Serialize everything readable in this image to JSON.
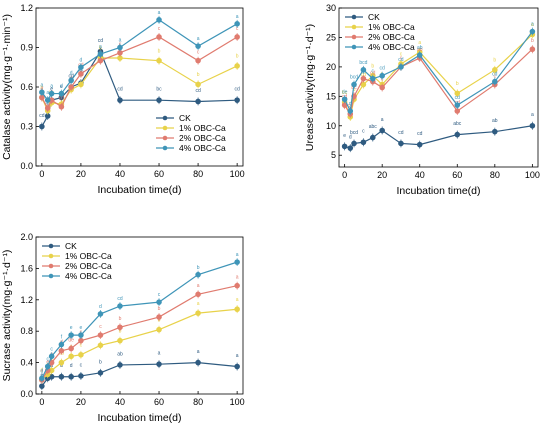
{
  "colors": {
    "CK": "#2f5b80",
    "1% OBC-Ca": "#e8d24a",
    "2% OBC-Ca": "#e07b6f",
    "4% OBC-Ca": "#3f95b8"
  },
  "chart_data": [
    {
      "id": "catalase",
      "type": "line",
      "xlabel": "Incubation time(d)",
      "ylabel": "Catalase activity(mg·g⁻¹·min⁻¹)",
      "xlim": [
        -3,
        103
      ],
      "ylim": [
        0.0,
        1.2
      ],
      "xticks": [
        0,
        20,
        40,
        60,
        80,
        100
      ],
      "xtick_labels": [
        "0",
        "20",
        "40",
        "60",
        "80",
        "100"
      ],
      "yticks": [
        0.0,
        0.3,
        0.6,
        0.9,
        1.2
      ],
      "ytick_labels": [
        "0.0",
        "0.3",
        "0.6",
        "0.9",
        "1.2"
      ],
      "legend_position": "bottom-right",
      "x": [
        0,
        3,
        5,
        10,
        15,
        20,
        30,
        40,
        60,
        80,
        100
      ],
      "series": [
        {
          "name": "CK",
          "values": [
            0.3,
            0.38,
            0.5,
            0.52,
            0.6,
            0.63,
            0.87,
            0.5,
            0.5,
            0.49,
            0.5
          ]
        },
        {
          "name": "1% OBC-Ca",
          "values": [
            0.52,
            0.42,
            0.48,
            0.47,
            0.58,
            0.62,
            0.82,
            0.82,
            0.8,
            0.62,
            0.76
          ]
        },
        {
          "name": "2% OBC-Ca",
          "values": [
            0.52,
            0.44,
            0.5,
            0.45,
            0.6,
            0.7,
            0.8,
            0.86,
            0.98,
            0.8,
            0.98
          ]
        },
        {
          "name": "4% OBC-Ca",
          "values": [
            0.56,
            0.5,
            0.55,
            0.55,
            0.65,
            0.75,
            0.85,
            0.9,
            1.11,
            0.91,
            1.08
          ]
        }
      ],
      "sig_letters": [
        [
          "cd",
          "cd",
          "e",
          "e",
          "cd",
          "ab",
          "cd",
          "cd",
          "bc",
          "cd",
          "cd"
        ],
        [
          "b",
          "c",
          "bc",
          "e",
          "b",
          "bc",
          "b",
          "b",
          "b",
          "b",
          "b"
        ],
        [
          "d",
          "d",
          "c",
          "cd",
          "d",
          "cd",
          "c",
          "c",
          "c",
          "c",
          "c"
        ],
        [
          "a",
          "a",
          "a",
          "d",
          "d",
          "d",
          "a",
          "a",
          "a",
          "a",
          "a"
        ]
      ]
    },
    {
      "id": "urease",
      "type": "line",
      "xlabel": "Incubation time(d)",
      "ylabel": "Urease activity(mg·g⁻¹·d⁻¹)",
      "xlim": [
        -3,
        103
      ],
      "ylim": [
        3,
        30
      ],
      "xticks": [
        0,
        20,
        40,
        60,
        80,
        100
      ],
      "xtick_labels": [
        "0",
        "20",
        "40",
        "60",
        "80",
        "100"
      ],
      "yticks": [
        5,
        10,
        15,
        20,
        25,
        30
      ],
      "ytick_labels": [
        "5",
        "10",
        "15",
        "20",
        "25",
        "30"
      ],
      "legend_position": "top-left",
      "x": [
        0,
        3,
        5,
        10,
        15,
        20,
        30,
        40,
        60,
        80,
        100
      ],
      "series": [
        {
          "name": "CK",
          "values": [
            6.5,
            6.2,
            7.0,
            7.2,
            8.0,
            9.2,
            7.0,
            6.8,
            8.5,
            9.0,
            10.0
          ]
        },
        {
          "name": "1% OBC-Ca",
          "values": [
            14.0,
            11.5,
            14.5,
            17.0,
            18.5,
            17.0,
            20.5,
            22.5,
            15.5,
            19.5,
            25.5
          ]
        },
        {
          "name": "2% OBC-Ca",
          "values": [
            13.5,
            12.0,
            15.0,
            18.0,
            17.5,
            16.5,
            20.0,
            21.5,
            12.5,
            17.0,
            23.0
          ]
        },
        {
          "name": "4% OBC-Ca",
          "values": [
            14.5,
            12.5,
            17.0,
            19.5,
            18.0,
            18.5,
            20.0,
            22.0,
            13.5,
            17.5,
            26.0
          ]
        }
      ],
      "sig_letters": [
        [
          "e",
          "d",
          "bcd",
          "c",
          "abc",
          "a",
          "cd",
          "cd",
          "abc",
          "ab",
          "a"
        ],
        [
          "bc",
          "c",
          "b",
          "cd",
          "b",
          "b",
          "c",
          "a",
          "b",
          "b",
          "a"
        ],
        [
          "cd",
          "cd",
          "bc",
          "c",
          "cd",
          "c",
          "c",
          "ab",
          "cd",
          "c",
          "b"
        ],
        [
          "de",
          "d",
          "bcd",
          "bcd",
          "c",
          "cd",
          "cd",
          "ab",
          "cd",
          "cd",
          "a"
        ]
      ]
    },
    {
      "id": "sucrase",
      "type": "line",
      "xlabel": "Incubation time(d)",
      "ylabel": "Sucrase activity(mg·g⁻¹·d⁻¹)",
      "xlim": [
        -3,
        103
      ],
      "ylim": [
        0.0,
        2.0
      ],
      "xticks": [
        0,
        20,
        40,
        60,
        80,
        100
      ],
      "xtick_labels": [
        "0",
        "20",
        "40",
        "60",
        "80",
        "100"
      ],
      "yticks": [
        0.0,
        0.4,
        0.8,
        1.2,
        1.6,
        2.0
      ],
      "ytick_labels": [
        "0.0",
        "0.4",
        "0.8",
        "1.2",
        "1.6",
        "2.0"
      ],
      "legend_position": "top-left",
      "x": [
        0,
        3,
        5,
        10,
        15,
        20,
        30,
        40,
        60,
        80,
        100
      ],
      "series": [
        {
          "name": "CK",
          "values": [
            0.1,
            0.2,
            0.22,
            0.22,
            0.22,
            0.23,
            0.27,
            0.37,
            0.38,
            0.4,
            0.35
          ]
        },
        {
          "name": "1% OBC-Ca",
          "values": [
            0.18,
            0.25,
            0.3,
            0.4,
            0.48,
            0.5,
            0.62,
            0.68,
            0.82,
            1.03,
            1.08
          ]
        },
        {
          "name": "2% OBC-Ca",
          "values": [
            0.18,
            0.3,
            0.4,
            0.55,
            0.58,
            0.68,
            0.75,
            0.85,
            0.98,
            1.27,
            1.38
          ]
        },
        {
          "name": "4% OBC-Ca",
          "values": [
            0.2,
            0.35,
            0.48,
            0.63,
            0.75,
            0.75,
            1.02,
            1.12,
            1.17,
            1.52,
            1.68
          ]
        }
      ],
      "sig_letters": [
        [
          "e",
          "d",
          "d",
          "d",
          "d",
          "c",
          "b",
          "ab",
          "a",
          "a",
          "a"
        ],
        [
          "d",
          "d",
          "c",
          "cd",
          "c",
          "c",
          "c",
          "b",
          "b",
          "a",
          "a"
        ],
        [
          "e",
          "e",
          "e",
          "d",
          "de",
          "c",
          "c",
          "b",
          "b",
          "a",
          "a"
        ],
        [
          "d",
          "c",
          "c",
          "f",
          "e",
          "e",
          "d",
          "cd",
          "c",
          "b",
          "a"
        ]
      ]
    }
  ]
}
